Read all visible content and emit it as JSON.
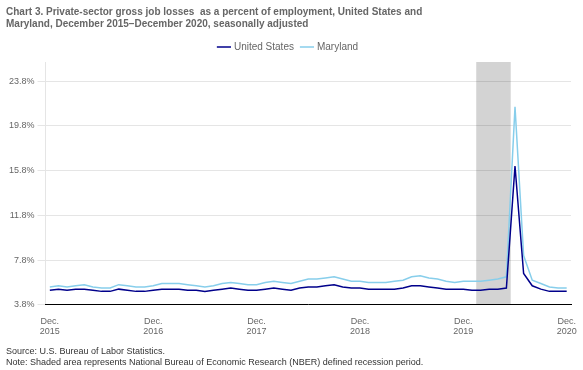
{
  "chart_data": {
    "type": "line",
    "title": [
      "Chart 3. Private-sector gross job losses  as a percent of employment, United States and",
      "Maryland, December 2015–December 2020, seasonally adjusted"
    ],
    "annotations": [
      "Source: U.S. Bureau of Labor Statistics.",
      "Note: Shaded area represents National Bureau of Economic Research (NBER) defined recession period."
    ],
    "categories": [
      "Dec.\n2015",
      null,
      null,
      null,
      null,
      null,
      null,
      null,
      null,
      null,
      null,
      null,
      "Dec.\n2016",
      null,
      null,
      null,
      null,
      null,
      null,
      null,
      null,
      null,
      null,
      null,
      "Dec.\n2017",
      null,
      null,
      null,
      null,
      null,
      null,
      null,
      null,
      null,
      null,
      null,
      "Dec.\n2018",
      null,
      null,
      null,
      null,
      null,
      null,
      null,
      null,
      null,
      null,
      null,
      "Dec.\n2019",
      null,
      null,
      null,
      null,
      null,
      null,
      null,
      null,
      null,
      null,
      null,
      "Dec.\n2020"
    ],
    "series": [
      {
        "name": "United States",
        "color": "#00008B",
        "values": [
          5.1,
          5.2,
          5.1,
          5.2,
          5.2,
          5.1,
          5.0,
          5.0,
          5.2,
          5.1,
          5.0,
          5.0,
          5.1,
          5.2,
          5.2,
          5.2,
          5.1,
          5.1,
          5.0,
          5.1,
          5.2,
          5.3,
          5.2,
          5.1,
          5.1,
          5.2,
          5.3,
          5.2,
          5.1,
          5.3,
          5.4,
          5.4,
          5.5,
          5.6,
          5.4,
          5.3,
          5.3,
          5.2,
          5.2,
          5.2,
          5.2,
          5.3,
          5.5,
          5.5,
          5.4,
          5.3,
          5.2,
          5.2,
          5.2,
          5.1,
          5.1,
          5.2,
          5.2,
          5.3,
          16.2,
          6.6,
          5.5,
          5.2,
          5.0,
          5.0,
          5.0
        ]
      },
      {
        "name": "Maryland",
        "color": "#87CEEB",
        "values": [
          5.4,
          5.5,
          5.4,
          5.5,
          5.6,
          5.4,
          5.3,
          5.3,
          5.6,
          5.5,
          5.4,
          5.4,
          5.5,
          5.7,
          5.7,
          5.7,
          5.6,
          5.5,
          5.4,
          5.5,
          5.7,
          5.8,
          5.7,
          5.6,
          5.6,
          5.8,
          5.9,
          5.8,
          5.7,
          5.9,
          6.1,
          6.1,
          6.2,
          6.3,
          6.1,
          5.9,
          5.9,
          5.8,
          5.8,
          5.8,
          5.9,
          6.0,
          6.3,
          6.4,
          6.2,
          6.1,
          5.9,
          5.8,
          5.9,
          5.9,
          5.9,
          6.0,
          6.1,
          6.3,
          21.5,
          8.2,
          6.0,
          5.7,
          5.4,
          5.3,
          5.3
        ]
      }
    ],
    "ylim": [
      3.8,
      25.5
    ],
    "yticks": [
      {
        "value": 3.8,
        "label": "3.8%"
      },
      {
        "value": 7.8,
        "label": "7.8%"
      },
      {
        "value": 11.8,
        "label": "11.8%"
      },
      {
        "value": 15.8,
        "label": "15.8%"
      },
      {
        "value": 19.8,
        "label": "19.8%"
      },
      {
        "value": 23.8,
        "label": "23.8%"
      }
    ],
    "grid": true,
    "legend": "top",
    "shade": {
      "from": 49.5,
      "to": 53.5,
      "color": "#D3D3D3"
    }
  }
}
